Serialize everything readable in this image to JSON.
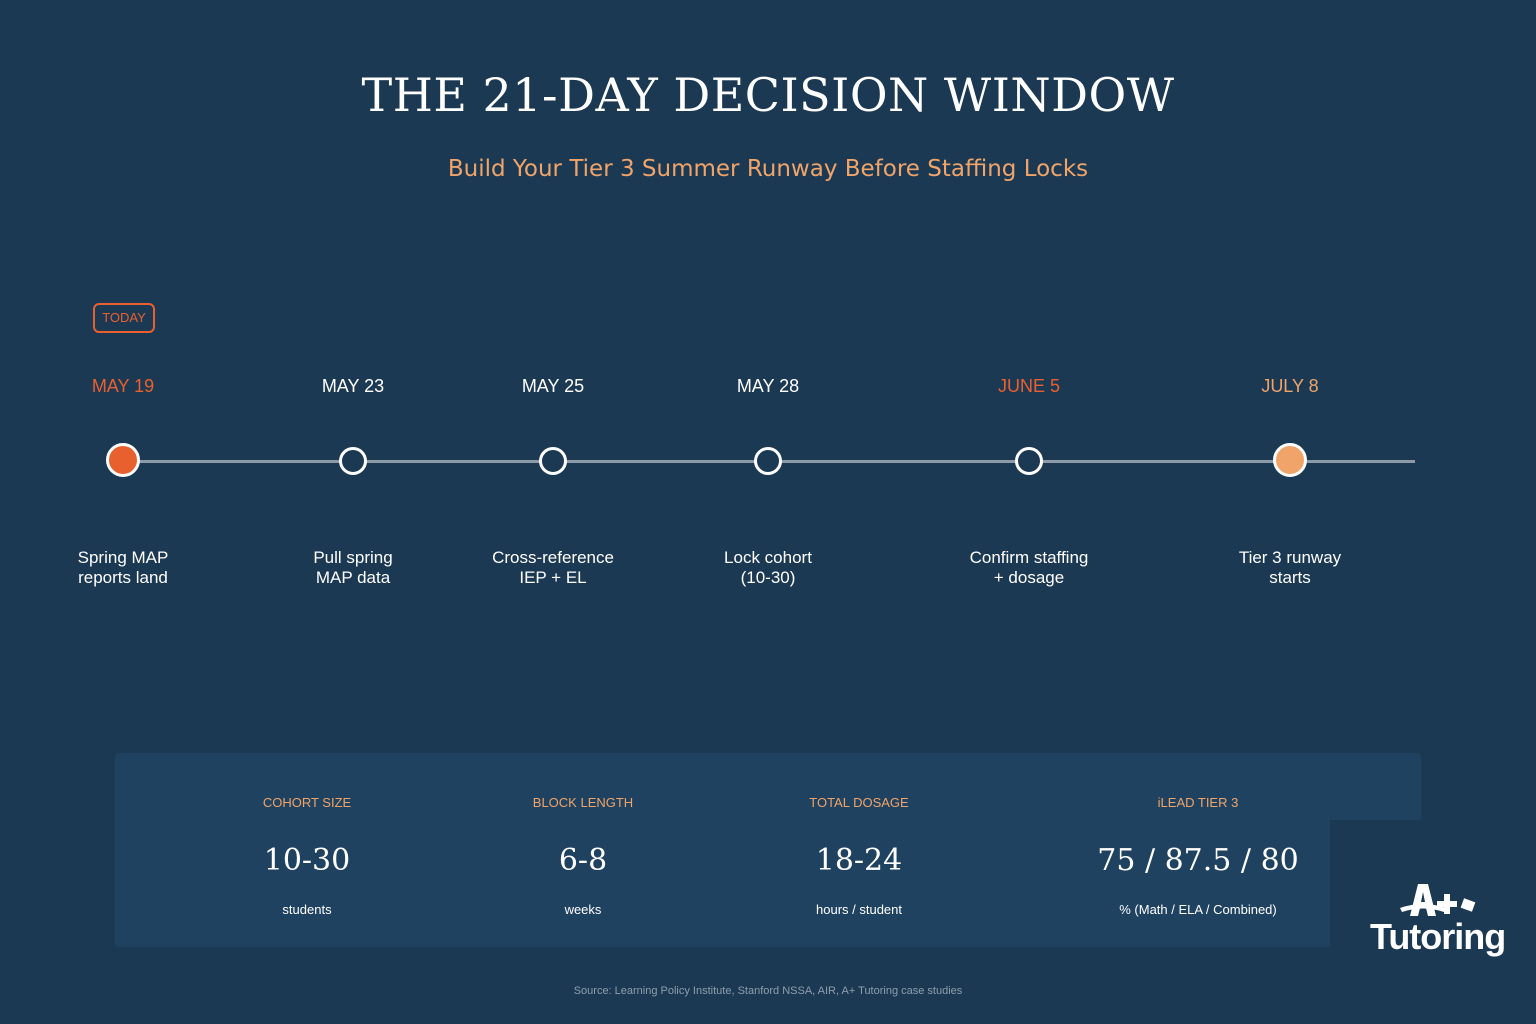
{
  "header": {
    "title": "THE 21-DAY DECISION WINDOW",
    "subtitle": "Build Your Tier 3 Summer Runway Before Staffing Locks"
  },
  "timeline": {
    "today_label": "TODAY",
    "milestones": [
      {
        "date": "MAY 19",
        "description": "Spring MAP\nreports land",
        "state": "today"
      },
      {
        "date": "MAY 23",
        "description": "Pull spring\nMAP data",
        "state": "normal"
      },
      {
        "date": "MAY 25",
        "description": "Cross-reference\nIEP + EL",
        "state": "normal"
      },
      {
        "date": "MAY 28",
        "description": "Lock cohort\n(10-30)",
        "state": "normal"
      },
      {
        "date": "JUNE 5",
        "description": "Confirm staffing\n+ dosage",
        "state": "highlight"
      },
      {
        "date": "JULY 8",
        "description": "Tier 3 runway\nstarts",
        "state": "final"
      }
    ]
  },
  "stats": [
    {
      "label": "COHORT SIZE",
      "value": "10-30",
      "unit": "students"
    },
    {
      "label": "BLOCK LENGTH",
      "value": "6-8",
      "unit": "weeks"
    },
    {
      "label": "TOTAL DOSAGE",
      "value": "18-24",
      "unit": "hours / student"
    },
    {
      "label": "iLEAD TIER 3",
      "value": "75 / 87.5 / 80",
      "unit": "% (Math / ELA / Combined)"
    }
  ],
  "logo": {
    "text": "A+ Tutoring"
  },
  "footer": {
    "source": "Source: Learning Policy Institute, Stanford NSSA, AIR, A+ Tutoring case studies"
  },
  "colors": {
    "background": "#1c3953",
    "panel": "#1f4260",
    "accent_red": "#e9602f",
    "accent_orange": "#f0a46a"
  }
}
